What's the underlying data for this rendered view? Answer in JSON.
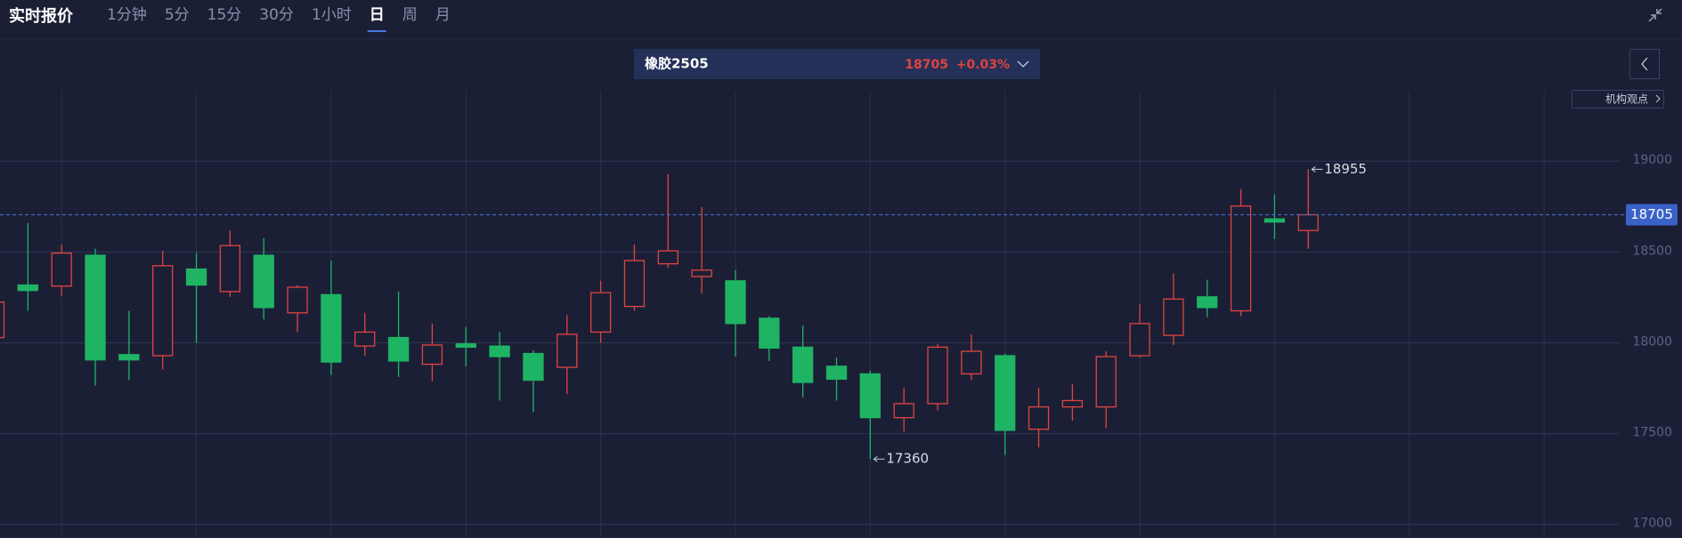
{
  "header": {
    "title": "实时报价",
    "tabs": [
      "1分钟",
      "5分",
      "15分",
      "30分",
      "1小时",
      "日",
      "周",
      "月"
    ],
    "active_tab": 5
  },
  "quote": {
    "name": "橡胶2505",
    "change": "+0.03%"
  },
  "side_button": "机构观点",
  "chart_data": {
    "type": "candlestick",
    "categories": [
      null,
      null,
      null,
      null,
      null,
      null,
      null,
      null,
      null,
      null,
      null,
      null,
      null,
      null,
      null,
      null,
      null,
      null,
      null,
      null,
      null,
      null,
      null,
      null,
      null,
      null,
      null,
      null,
      null,
      null,
      null,
      null,
      null,
      null,
      null,
      null,
      null,
      null,
      null,
      null
    ],
    "open": [
      18029,
      18318,
      18312,
      18482,
      17935,
      17929,
      18406,
      18282,
      18482,
      18165,
      18265,
      17982,
      18029,
      17882,
      17994,
      17982,
      17941,
      17865,
      18059,
      18200,
      18435,
      18365,
      18341,
      18135,
      17976,
      17871,
      17829,
      17588,
      17665,
      17829,
      17929,
      17524,
      17647,
      17647,
      17929,
      18041,
      18253,
      18176,
      18682,
      18618
    ],
    "high": [
      18260,
      18659,
      18541,
      18518,
      18176,
      18506,
      18494,
      18618,
      18576,
      18318,
      18453,
      18165,
      18282,
      18106,
      18088,
      18059,
      17959,
      18153,
      18341,
      18541,
      18929,
      18747,
      18400,
      18147,
      18094,
      17918,
      17847,
      17753,
      17994,
      18047,
      17941,
      17753,
      17771,
      17953,
      18212,
      18382,
      18347,
      18847,
      18818,
      18955
    ],
    "low": [
      17990,
      18176,
      18259,
      17765,
      17794,
      17853,
      18000,
      18253,
      18129,
      18059,
      17824,
      17929,
      17812,
      17788,
      17871,
      17682,
      17618,
      17718,
      18000,
      18176,
      18412,
      18271,
      17924,
      17900,
      17700,
      17682,
      17360,
      17512,
      17629,
      17794,
      17382,
      17424,
      17571,
      17529,
      17918,
      17988,
      18141,
      18147,
      18571,
      18518
    ],
    "close": [
      18224,
      18288,
      18494,
      17906,
      17906,
      18424,
      18318,
      18535,
      18194,
      18306,
      17894,
      18059,
      17900,
      17988,
      17976,
      17924,
      17794,
      18047,
      18276,
      18453,
      18506,
      18400,
      18106,
      17971,
      17782,
      17800,
      17588,
      17665,
      17976,
      17953,
      17518,
      17647,
      17682,
      17924,
      18106,
      18241,
      18194,
      18753,
      18665,
      18705
    ],
    "up_color": "#e0443f",
    "down_color": "#1fb464",
    "ylim": [
      16940,
      19290
    ],
    "yticks": [
      17000,
      17500,
      18000,
      18500,
      19000
    ],
    "grid": true
  }
}
